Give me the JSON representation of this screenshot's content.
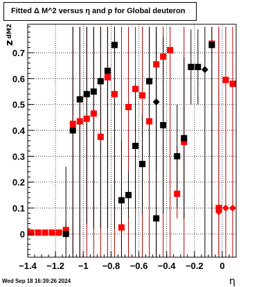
{
  "date_stamp": "Wed Sep 18 16:39:26 2024",
  "chart_data": {
    "type": "scatter",
    "title": "Fitted Δ M^2 versus η and p for Global deuteron",
    "xlabel": "η",
    "ylabel": "z",
    "ylabel_sub": "dM2",
    "xlim": [
      -1.4,
      0.1
    ],
    "ylim": [
      -0.09,
      0.81
    ],
    "x_ticks": [
      -1.4,
      -1.2,
      -1.0,
      -0.8,
      -0.6,
      -0.4,
      -0.2,
      0
    ],
    "x_tick_labels": [
      "−1.4",
      "−1.2",
      "−1",
      "−0.8",
      "−0.6",
      "−0.4",
      "−0.2",
      "0"
    ],
    "y_ticks": [
      0,
      0.1,
      0.2,
      0.3,
      0.4,
      0.5,
      0.6,
      0.7
    ],
    "y_tick_labels": [
      "0",
      "0.1",
      "0.2",
      "0.3",
      "0.4",
      "0.5",
      "0.6",
      "0.7"
    ],
    "grid": true,
    "colors": {
      "red_series": "#ff0000",
      "black_series": "#000000",
      "red_bar": "#aa0000"
    },
    "series": [
      {
        "color": "red",
        "points": [
          {
            "x": -1.375,
            "y": 0.005,
            "lo": 0.005,
            "hi": 0.005,
            "marker": "square"
          },
          {
            "x": -1.325,
            "y": 0.005,
            "lo": 0.005,
            "hi": 0.005,
            "marker": "square"
          },
          {
            "x": -1.275,
            "y": 0.005,
            "lo": 0.005,
            "hi": 0.005,
            "marker": "square"
          },
          {
            "x": -1.225,
            "y": 0.005,
            "lo": 0.005,
            "hi": 0.005,
            "marker": "square"
          },
          {
            "x": -1.175,
            "y": 0.005,
            "lo": 0.005,
            "hi": 0.005,
            "marker": "square"
          },
          {
            "x": -1.125,
            "y": 0.015,
            "lo": -0.02,
            "hi": 0.05,
            "marker": "square"
          },
          {
            "x": -1.075,
            "y": 0.425,
            "lo": -0.09,
            "hi": 0.8,
            "marker": "square"
          },
          {
            "x": -1.025,
            "y": 0.435,
            "lo": -0.09,
            "hi": 0.8,
            "marker": "square"
          },
          {
            "x": -0.975,
            "y": 0.445,
            "lo": -0.09,
            "hi": 0.8,
            "marker": "square"
          },
          {
            "x": -0.925,
            "y": 0.465,
            "lo": -0.09,
            "hi": 0.8,
            "marker": "square"
          },
          {
            "x": -0.875,
            "y": 0.375,
            "lo": -0.09,
            "hi": 0.8,
            "marker": "square"
          },
          {
            "x": -0.825,
            "y": 0.605,
            "lo": -0.09,
            "hi": 0.8,
            "marker": "square"
          },
          {
            "x": -0.775,
            "y": 0.54,
            "lo": -0.09,
            "hi": 0.8,
            "marker": "square"
          },
          {
            "x": -0.725,
            "y": 0.025,
            "lo": -0.09,
            "hi": 0.8,
            "marker": "square"
          },
          {
            "x": -0.675,
            "y": 0.49,
            "lo": -0.09,
            "hi": 0.8,
            "marker": "square"
          },
          {
            "x": -0.625,
            "y": 0.56,
            "lo": -0.09,
            "hi": 0.8,
            "marker": "square"
          },
          {
            "x": -0.575,
            "y": 0.535,
            "lo": -0.09,
            "hi": 0.8,
            "marker": "square"
          },
          {
            "x": -0.525,
            "y": 0.435,
            "lo": -0.09,
            "hi": 0.8,
            "marker": "square"
          },
          {
            "x": -0.475,
            "y": 0.655,
            "lo": -0.09,
            "hi": 0.8,
            "marker": "square"
          },
          {
            "x": -0.425,
            "y": 0.685,
            "lo": -0.09,
            "hi": 0.8,
            "marker": "square"
          },
          {
            "x": -0.375,
            "y": 0.71,
            "lo": -0.09,
            "hi": 0.8,
            "marker": "square"
          },
          {
            "x": -0.325,
            "y": 0.155,
            "lo": 0.06,
            "hi": 0.34,
            "marker": "square"
          },
          {
            "x": -0.275,
            "y": 0.355,
            "lo": -0.09,
            "hi": 0.8,
            "marker": "square"
          },
          {
            "x": -0.075,
            "y": 0.735,
            "lo": -0.09,
            "hi": 0.8,
            "marker": "square"
          },
          {
            "x": -0.025,
            "y": 0.085,
            "lo": -0.09,
            "hi": 0.8,
            "marker": "diamond"
          },
          {
            "x": -0.025,
            "y": 0.1,
            "lo": -0.09,
            "hi": 0.8,
            "marker": "square"
          },
          {
            "x": 0.025,
            "y": 0.595,
            "lo": -0.09,
            "hi": 0.8,
            "marker": "square"
          },
          {
            "x": 0.025,
            "y": 0.1,
            "lo": 0.1,
            "hi": 0.1,
            "marker": "diamond"
          },
          {
            "x": 0.075,
            "y": 0.58,
            "lo": -0.09,
            "hi": 0.8,
            "marker": "square"
          },
          {
            "x": 0.075,
            "y": 0.1,
            "lo": 0.1,
            "hi": 0.1,
            "marker": "diamond"
          }
        ]
      },
      {
        "color": "black",
        "points": [
          {
            "x": -1.125,
            "y": 0.0,
            "lo": -0.09,
            "hi": 0.26,
            "marker": "square"
          },
          {
            "x": -1.075,
            "y": 0.4,
            "lo": -0.09,
            "hi": 0.8,
            "marker": "square"
          },
          {
            "x": -1.025,
            "y": 0.52,
            "lo": -0.09,
            "hi": 0.8,
            "marker": "square"
          },
          {
            "x": -0.975,
            "y": 0.54,
            "lo": 0.04,
            "hi": 0.8,
            "marker": "square"
          },
          {
            "x": -0.925,
            "y": 0.55,
            "lo": 0.02,
            "hi": 0.8,
            "marker": "square"
          },
          {
            "x": -0.875,
            "y": 0.59,
            "lo": 0.02,
            "hi": 0.8,
            "marker": "square"
          },
          {
            "x": -0.825,
            "y": 0.63,
            "lo": 0.02,
            "hi": 0.8,
            "marker": "square"
          },
          {
            "x": -0.775,
            "y": 0.73,
            "lo": 0.02,
            "hi": 0.8,
            "marker": "square"
          },
          {
            "x": -0.725,
            "y": 0.13,
            "lo": -0.09,
            "hi": 0.36,
            "marker": "square"
          },
          {
            "x": -0.675,
            "y": 0.15,
            "lo": 0.06,
            "hi": 0.24,
            "marker": "square"
          },
          {
            "x": -0.625,
            "y": 0.34,
            "lo": 0.1,
            "hi": 0.58,
            "marker": "square"
          },
          {
            "x": -0.575,
            "y": 0.27,
            "lo": 0.08,
            "hi": 0.46,
            "marker": "square"
          },
          {
            "x": -0.525,
            "y": 0.59,
            "lo": 0.3,
            "hi": 0.8,
            "marker": "square"
          },
          {
            "x": -0.475,
            "y": 0.51,
            "lo": 0.24,
            "hi": 0.78,
            "marker": "diamond"
          },
          {
            "x": -0.475,
            "y": 0.06,
            "lo": -0.09,
            "hi": 0.8,
            "marker": "square"
          },
          {
            "x": -0.425,
            "y": 0.42,
            "lo": 0.08,
            "hi": 0.76,
            "marker": "square"
          },
          {
            "x": -0.325,
            "y": 0.3,
            "lo": 0.1,
            "hi": 0.5,
            "marker": "square"
          },
          {
            "x": -0.275,
            "y": 0.37,
            "lo": 0.06,
            "hi": 0.68,
            "marker": "square"
          },
          {
            "x": -0.225,
            "y": 0.645,
            "lo": 0.5,
            "hi": 0.79,
            "marker": "square"
          },
          {
            "x": -0.175,
            "y": 0.645,
            "lo": 0.5,
            "hi": 0.79,
            "marker": "square"
          },
          {
            "x": -0.125,
            "y": 0.635,
            "lo": -0.09,
            "hi": 0.8,
            "marker": "diamond"
          },
          {
            "x": -0.075,
            "y": 0.73,
            "lo": -0.09,
            "hi": 0.8,
            "marker": "square"
          }
        ]
      }
    ]
  }
}
